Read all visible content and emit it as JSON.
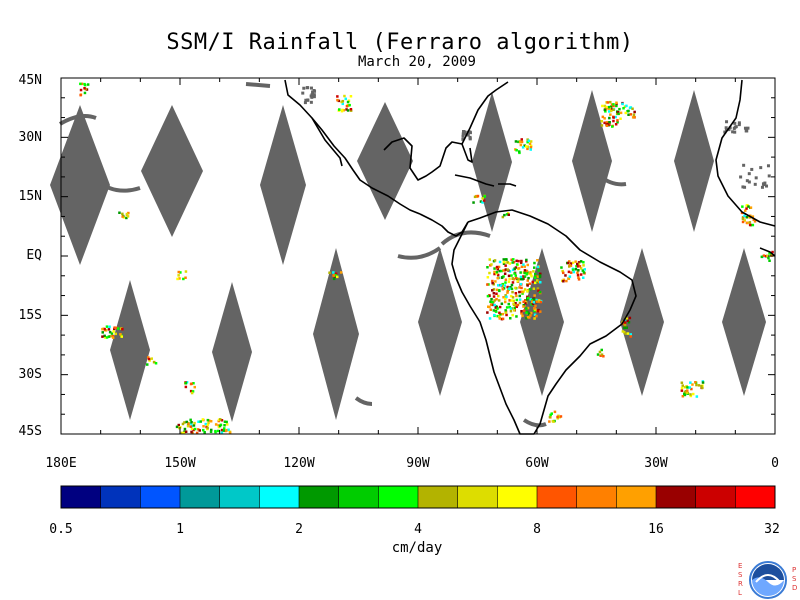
{
  "title": "SSM/I Rainfall (Ferraro algorithm)",
  "subtitle": "March 20, 2009",
  "lat_labels": [
    "45N",
    "30N",
    "15N",
    "EQ",
    "15S",
    "30S",
    "45S"
  ],
  "lon_labels": [
    "180E",
    "150W",
    "120W",
    "90W",
    "60W",
    "30W",
    "0"
  ],
  "colorbar": {
    "units": "cm/day",
    "ticks": [
      "0.5",
      "1",
      "2",
      "4",
      "8",
      "16",
      "32"
    ],
    "colors": [
      "#000080",
      "#0033bb",
      "#0055ff",
      "#009999",
      "#00c8c8",
      "#00ffff",
      "#009900",
      "#00cc00",
      "#00ff00",
      "#b3b300",
      "#dddd00",
      "#ffff00",
      "#ff5500",
      "#ff8000",
      "#ffa000",
      "#990000",
      "#cc0000",
      "#ff0000"
    ]
  },
  "map_colors": {
    "no_data": "#646464",
    "coast": "#000000",
    "ocean": "#ffffff"
  },
  "logo": {
    "left_letters": "ESRL",
    "right_letters": "PSD",
    "name": "NOAA"
  }
}
